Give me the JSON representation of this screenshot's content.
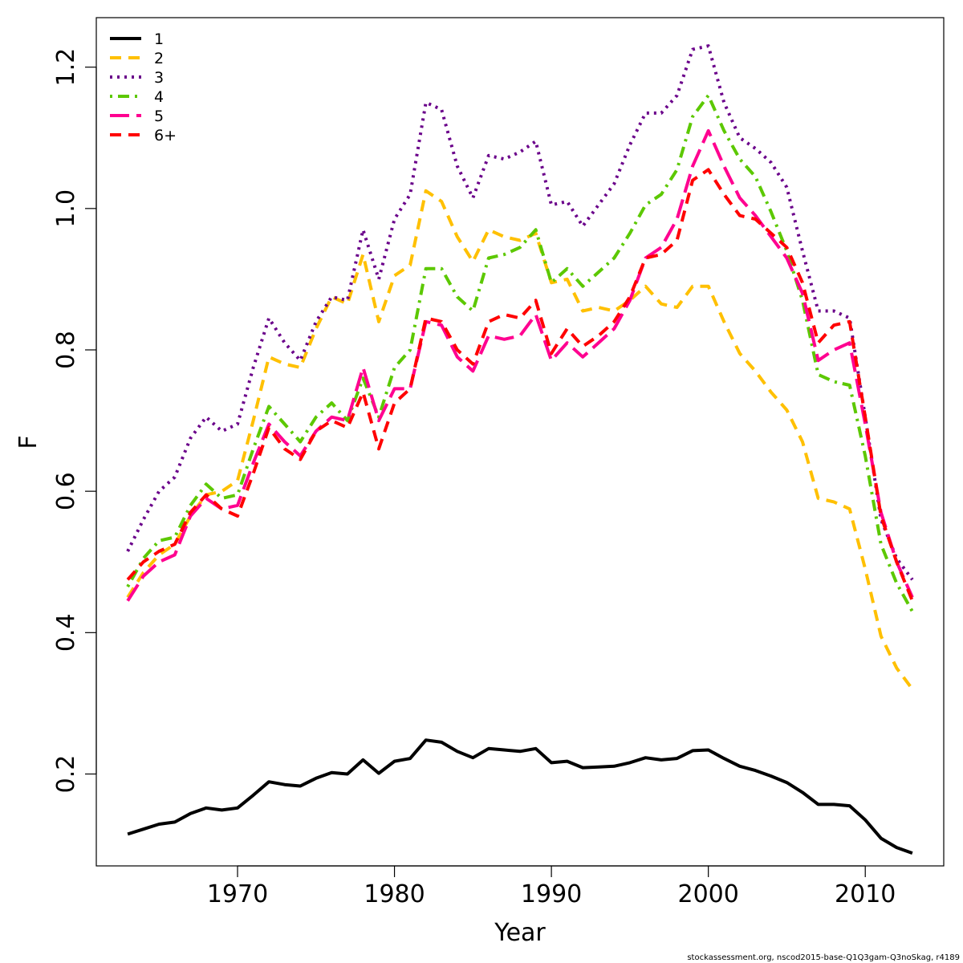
{
  "chart_data": {
    "type": "line",
    "xlabel": "Year",
    "ylabel": "F",
    "xlim": [
      1961,
      1915
    ],
    "x_range": [
      1961,
      2015
    ],
    "ylim": [
      0.07,
      1.27
    ],
    "x_ticks": [
      1970,
      1980,
      1990,
      2000,
      2010
    ],
    "y_ticks": [
      0.2,
      0.4,
      0.6,
      0.8,
      1.0,
      1.2
    ],
    "x_tick_labels": [
      "1970",
      "1980",
      "1990",
      "2000",
      "2010"
    ],
    "y_tick_labels": [
      "0.2",
      "0.4",
      "0.6",
      "0.8",
      "1.0",
      "1.2"
    ],
    "grid": false,
    "legend_position": "top-left",
    "footer": "stockassessment.org, nscod2015-base-Q1Q3gam-Q3noSkag, r4189",
    "x": [
      1963,
      1964,
      1965,
      1966,
      1967,
      1968,
      1969,
      1970,
      1971,
      1972,
      1973,
      1974,
      1975,
      1976,
      1977,
      1978,
      1979,
      1980,
      1981,
      1982,
      1983,
      1984,
      1985,
      1986,
      1987,
      1988,
      1989,
      1990,
      1991,
      1992,
      1993,
      1994,
      1995,
      1996,
      1997,
      1998,
      1999,
      2000,
      2001,
      2002,
      2003,
      2004,
      2005,
      2006,
      2007,
      2008,
      2009,
      2010,
      2011,
      2012,
      2013
    ],
    "series": [
      {
        "name": "1",
        "color": "#000000",
        "dash": "solid",
        "values": [
          0.115,
          0.122,
          0.129,
          0.132,
          0.144,
          0.152,
          0.149,
          0.152,
          0.17,
          0.189,
          0.185,
          0.183,
          0.194,
          0.202,
          0.2,
          0.22,
          0.201,
          0.218,
          0.222,
          0.248,
          0.245,
          0.232,
          0.223,
          0.236,
          0.234,
          0.232,
          0.236,
          0.216,
          0.218,
          0.209,
          0.21,
          0.211,
          0.216,
          0.223,
          0.22,
          0.222,
          0.233,
          0.234,
          0.222,
          0.211,
          0.205,
          0.197,
          0.188,
          0.174,
          0.157,
          0.157,
          0.155,
          0.135,
          0.109,
          0.096,
          0.088
        ]
      },
      {
        "name": "2",
        "color": "#FFC000",
        "dash": "dashed",
        "values": [
          0.45,
          0.485,
          0.51,
          0.525,
          0.565,
          0.595,
          0.6,
          0.615,
          0.7,
          0.79,
          0.78,
          0.775,
          0.83,
          0.875,
          0.865,
          0.935,
          0.84,
          0.905,
          0.92,
          1.025,
          1.01,
          0.96,
          0.925,
          0.97,
          0.96,
          0.955,
          0.965,
          0.895,
          0.9,
          0.855,
          0.86,
          0.855,
          0.87,
          0.89,
          0.865,
          0.86,
          0.89,
          0.89,
          0.84,
          0.795,
          0.77,
          0.74,
          0.715,
          0.67,
          0.59,
          0.585,
          0.575,
          0.49,
          0.395,
          0.35,
          0.32
        ]
      },
      {
        "name": "3",
        "color": "#6A008A",
        "dash": "dotted",
        "values": [
          0.515,
          0.56,
          0.6,
          0.62,
          0.675,
          0.705,
          0.685,
          0.695,
          0.775,
          0.845,
          0.81,
          0.785,
          0.84,
          0.875,
          0.87,
          0.97,
          0.9,
          0.985,
          1.02,
          1.15,
          1.14,
          1.06,
          1.015,
          1.075,
          1.07,
          1.08,
          1.095,
          1.005,
          1.01,
          0.975,
          1.005,
          1.035,
          1.09,
          1.135,
          1.135,
          1.16,
          1.225,
          1.23,
          1.15,
          1.1,
          1.085,
          1.065,
          1.03,
          0.94,
          0.855,
          0.855,
          0.845,
          0.705,
          0.56,
          0.505,
          0.475
        ]
      },
      {
        "name": "4",
        "color": "#5CC800",
        "dash": "dotdash",
        "values": [
          0.465,
          0.505,
          0.53,
          0.535,
          0.58,
          0.61,
          0.59,
          0.595,
          0.66,
          0.72,
          0.695,
          0.67,
          0.705,
          0.725,
          0.7,
          0.76,
          0.705,
          0.775,
          0.8,
          0.915,
          0.915,
          0.875,
          0.855,
          0.93,
          0.935,
          0.945,
          0.97,
          0.895,
          0.915,
          0.89,
          0.91,
          0.93,
          0.965,
          1.005,
          1.02,
          1.055,
          1.13,
          1.16,
          1.11,
          1.07,
          1.045,
          0.995,
          0.94,
          0.87,
          0.765,
          0.755,
          0.75,
          0.65,
          0.525,
          0.47,
          0.43
        ]
      },
      {
        "name": "5",
        "color": "#FF0090",
        "dash": "longdash",
        "values": [
          0.445,
          0.48,
          0.5,
          0.51,
          0.565,
          0.59,
          0.575,
          0.58,
          0.64,
          0.695,
          0.67,
          0.65,
          0.685,
          0.705,
          0.7,
          0.775,
          0.7,
          0.745,
          0.745,
          0.84,
          0.835,
          0.79,
          0.77,
          0.82,
          0.815,
          0.82,
          0.85,
          0.785,
          0.81,
          0.79,
          0.81,
          0.83,
          0.87,
          0.93,
          0.945,
          0.985,
          1.06,
          1.11,
          1.06,
          1.015,
          0.99,
          0.96,
          0.93,
          0.88,
          0.785,
          0.8,
          0.81,
          0.695,
          0.57,
          0.5,
          0.45
        ]
      },
      {
        "name": "6+",
        "color": "#FF0000",
        "dash": "dashed",
        "values": [
          0.475,
          0.5,
          0.515,
          0.525,
          0.57,
          0.595,
          0.575,
          0.565,
          0.625,
          0.69,
          0.66,
          0.645,
          0.685,
          0.7,
          0.69,
          0.74,
          0.66,
          0.725,
          0.745,
          0.845,
          0.84,
          0.8,
          0.78,
          0.84,
          0.85,
          0.845,
          0.87,
          0.795,
          0.83,
          0.805,
          0.82,
          0.84,
          0.875,
          0.93,
          0.935,
          0.955,
          1.04,
          1.055,
          1.02,
          0.99,
          0.985,
          0.965,
          0.945,
          0.895,
          0.81,
          0.835,
          0.84,
          0.705,
          0.565,
          0.5,
          0.445
        ]
      }
    ]
  }
}
